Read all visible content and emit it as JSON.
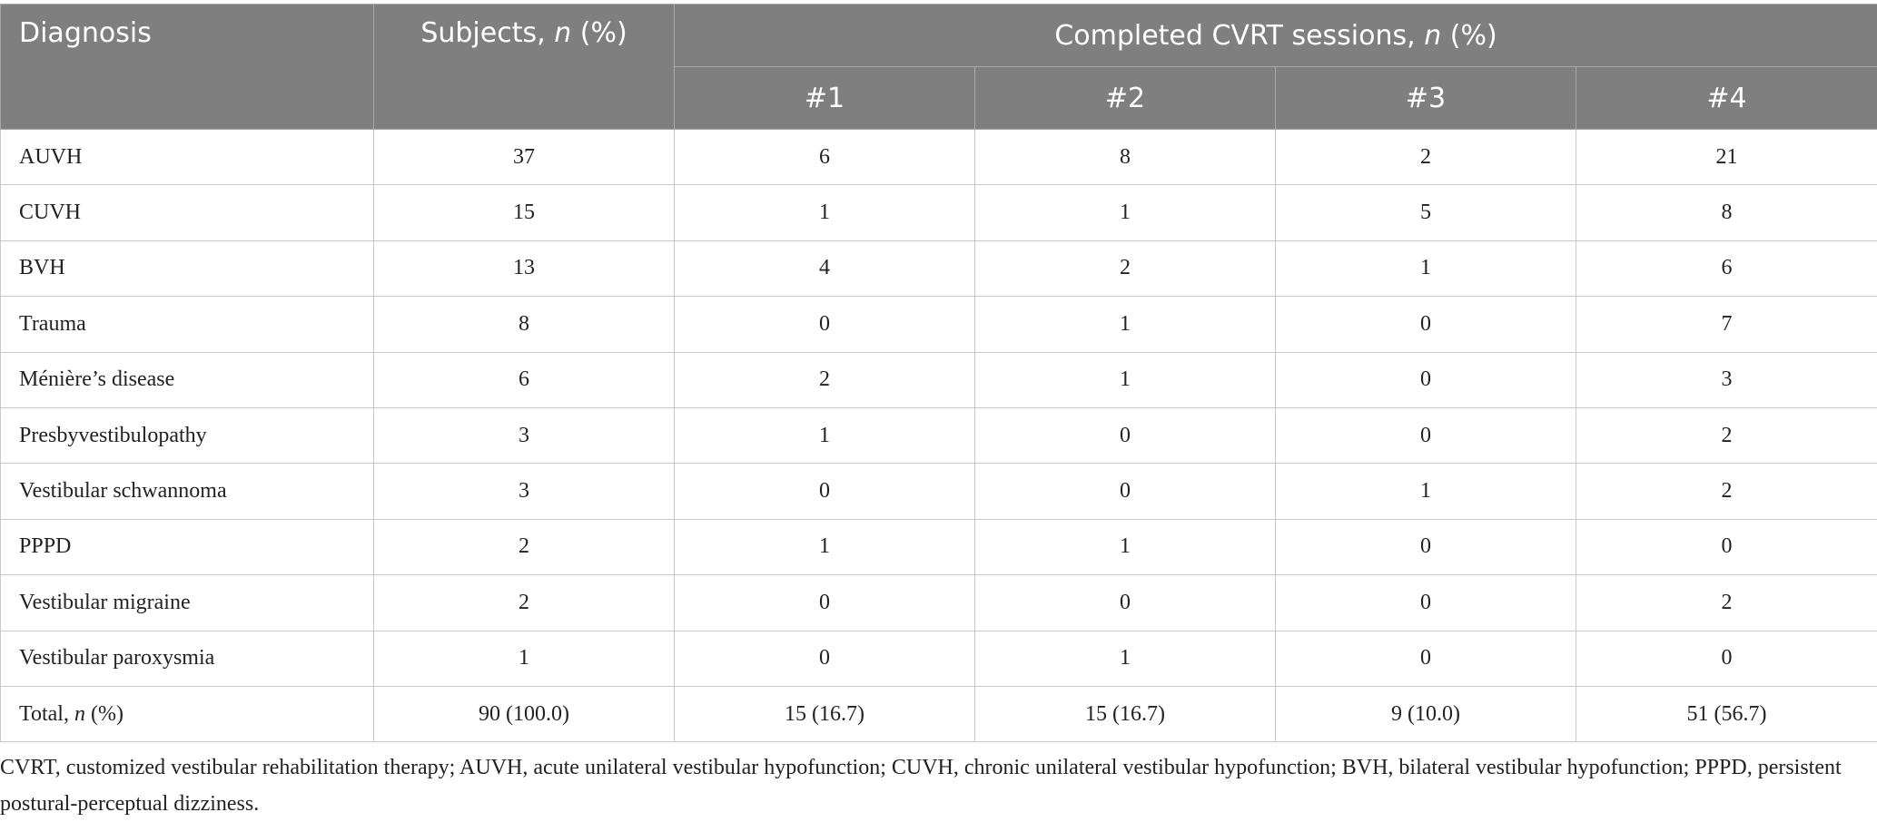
{
  "header": {
    "diagnosis": "Diagnosis",
    "subjects": [
      "Subjects, ",
      "n",
      " (%)"
    ],
    "sessions": [
      "Completed CVRT sessions, ",
      "n",
      " (%)"
    ],
    "session_numbers": [
      "#1",
      "#2",
      "#3",
      "#4"
    ]
  },
  "rows": [
    [
      "AUVH",
      "37",
      "6",
      "8",
      "2",
      "21"
    ],
    [
      "CUVH",
      "15",
      "1",
      "1",
      "5",
      "8"
    ],
    [
      "BVH",
      "13",
      "4",
      "2",
      "1",
      "6"
    ],
    [
      "Trauma",
      "8",
      "0",
      "1",
      "0",
      "7"
    ],
    [
      "Ménière’s disease",
      "6",
      "2",
      "1",
      "0",
      "3"
    ],
    [
      "Presbyvestibulopathy",
      "3",
      "1",
      "0",
      "0",
      "2"
    ],
    [
      "Vestibular schwannoma",
      "3",
      "0",
      "0",
      "1",
      "2"
    ],
    [
      "PPPD",
      "2",
      "1",
      "1",
      "0",
      "0"
    ],
    [
      "Vestibular migraine",
      "2",
      "0",
      "0",
      "0",
      "2"
    ],
    [
      "Vestibular paroxysmia",
      "1",
      "0",
      "1",
      "0",
      "0"
    ]
  ],
  "total": {
    "label": [
      "Total, ",
      "n",
      " (%)"
    ],
    "values": [
      "90 (100.0)",
      "15 (16.7)",
      "15 (16.7)",
      "9 (10.0)",
      "51 (56.7)"
    ]
  },
  "footnote": "CVRT, customized vestibular rehabilitation therapy; AUVH, acute unilateral vestibular hypofunction; CUVH, chronic unilateral vestibular hypofunction; BVH, bilateral vestibular hypofunction; PPPD, persistent postural-perceptual dizziness."
}
